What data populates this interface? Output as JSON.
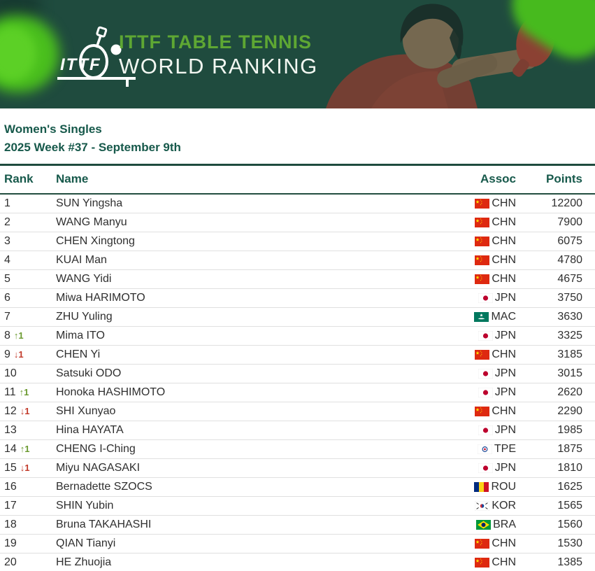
{
  "banner": {
    "logo_text": "ITTF",
    "title_line1": "ITTF TABLE TENNIS",
    "title_line2": "WORLD RANKING",
    "colors": {
      "background": "#1F4B3E",
      "accent_green": "#4ABF1D",
      "headline_green": "#5EA733",
      "headline_white": "#F2F7F1"
    }
  },
  "page": {
    "category": "Women's Singles",
    "week_label": "2025 Week #37 - September 9th",
    "heading_color": "#17594B"
  },
  "table": {
    "headers": {
      "rank": "Rank",
      "name": "Name",
      "assoc": "Assoc",
      "points": "Points"
    },
    "rank_up_color": "#6B9A30",
    "rank_down_color": "#C23B2B",
    "rows": [
      {
        "rank": 1,
        "change": 0,
        "name": "SUN Yingsha",
        "assoc": "CHN",
        "points": 12200
      },
      {
        "rank": 2,
        "change": 0,
        "name": "WANG Manyu",
        "assoc": "CHN",
        "points": 7900
      },
      {
        "rank": 3,
        "change": 0,
        "name": "CHEN Xingtong",
        "assoc": "CHN",
        "points": 6075
      },
      {
        "rank": 4,
        "change": 0,
        "name": "KUAI Man",
        "assoc": "CHN",
        "points": 4780
      },
      {
        "rank": 5,
        "change": 0,
        "name": "WANG Yidi",
        "assoc": "CHN",
        "points": 4675
      },
      {
        "rank": 6,
        "change": 0,
        "name": "Miwa HARIMOTO",
        "assoc": "JPN",
        "points": 3750
      },
      {
        "rank": 7,
        "change": 0,
        "name": "ZHU Yuling",
        "assoc": "MAC",
        "points": 3630
      },
      {
        "rank": 8,
        "change": 1,
        "name": "Mima ITO",
        "assoc": "JPN",
        "points": 3325
      },
      {
        "rank": 9,
        "change": -1,
        "name": "CHEN Yi",
        "assoc": "CHN",
        "points": 3185
      },
      {
        "rank": 10,
        "change": 0,
        "name": "Satsuki ODO",
        "assoc": "JPN",
        "points": 3015
      },
      {
        "rank": 11,
        "change": 1,
        "name": "Honoka HASHIMOTO",
        "assoc": "JPN",
        "points": 2620
      },
      {
        "rank": 12,
        "change": -1,
        "name": "SHI Xunyao",
        "assoc": "CHN",
        "points": 2290
      },
      {
        "rank": 13,
        "change": 0,
        "name": "Hina HAYATA",
        "assoc": "JPN",
        "points": 1985
      },
      {
        "rank": 14,
        "change": 1,
        "name": "CHENG I-Ching",
        "assoc": "TPE",
        "points": 1875
      },
      {
        "rank": 15,
        "change": -1,
        "name": "Miyu NAGASAKI",
        "assoc": "JPN",
        "points": 1810
      },
      {
        "rank": 16,
        "change": 0,
        "name": "Bernadette SZOCS",
        "assoc": "ROU",
        "points": 1625
      },
      {
        "rank": 17,
        "change": 0,
        "name": "SHIN Yubin",
        "assoc": "KOR",
        "points": 1565
      },
      {
        "rank": 18,
        "change": 0,
        "name": "Bruna TAKAHASHI",
        "assoc": "BRA",
        "points": 1560
      },
      {
        "rank": 19,
        "change": 0,
        "name": "QIAN Tianyi",
        "assoc": "CHN",
        "points": 1530
      },
      {
        "rank": 20,
        "change": 0,
        "name": "HE Zhuojia",
        "assoc": "CHN",
        "points": 1385
      }
    ]
  }
}
